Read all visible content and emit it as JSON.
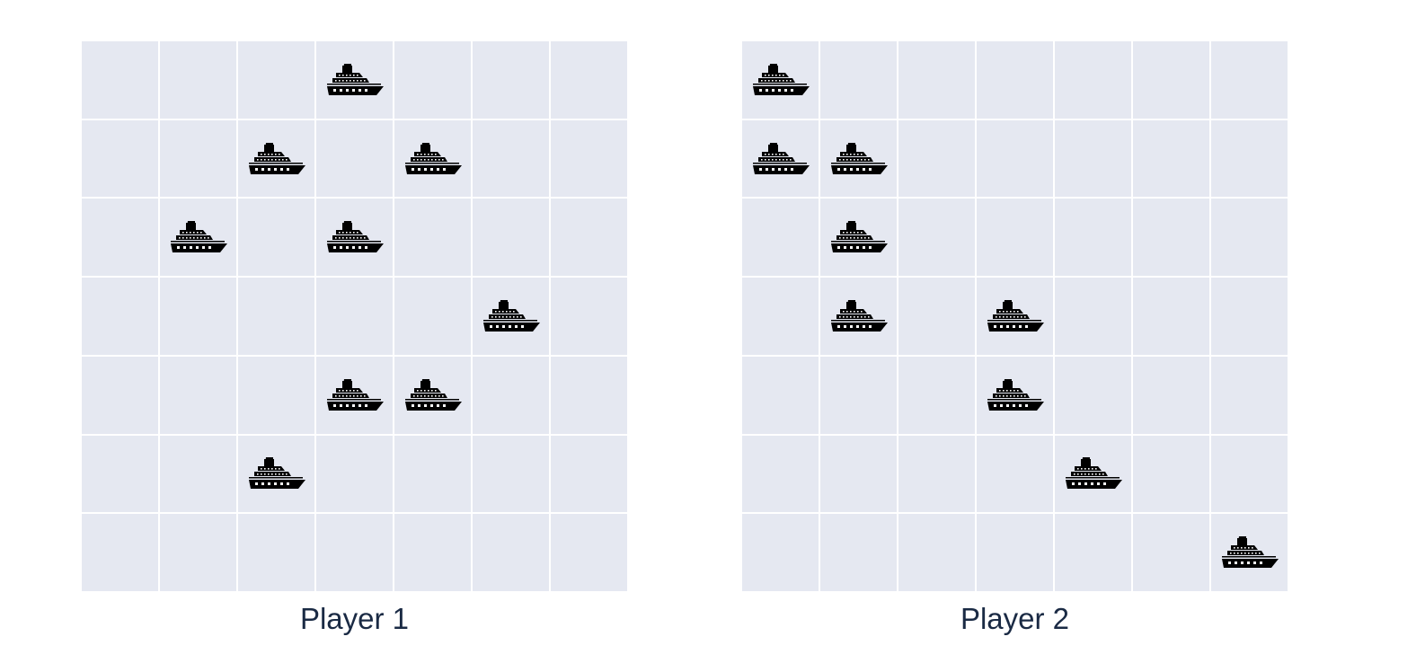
{
  "grid": {
    "rows": 7,
    "cols": 7
  },
  "colors": {
    "cell": "#e5e8f1",
    "gridline": "#ffffff",
    "ship": "#000000",
    "label": "#1a2a44"
  },
  "icon": "cruise-ship-icon",
  "players": [
    {
      "label": "Player 1",
      "ships": [
        [
          0,
          3
        ],
        [
          1,
          2
        ],
        [
          1,
          4
        ],
        [
          2,
          1
        ],
        [
          2,
          3
        ],
        [
          3,
          5
        ],
        [
          4,
          3
        ],
        [
          4,
          4
        ],
        [
          5,
          2
        ]
      ]
    },
    {
      "label": "Player 2",
      "ships": [
        [
          0,
          0
        ],
        [
          1,
          0
        ],
        [
          1,
          1
        ],
        [
          2,
          1
        ],
        [
          3,
          1
        ],
        [
          3,
          3
        ],
        [
          4,
          3
        ],
        [
          5,
          4
        ],
        [
          6,
          6
        ]
      ]
    }
  ]
}
